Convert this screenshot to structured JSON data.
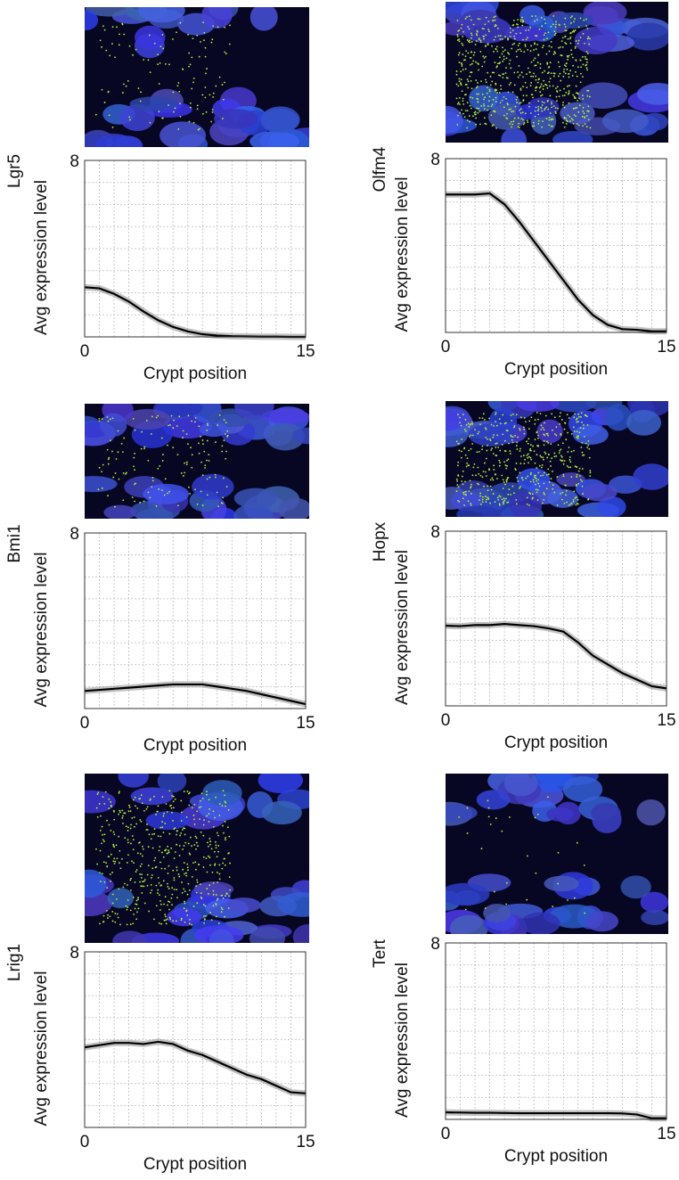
{
  "chart_data": [
    {
      "type": "line",
      "title": "Lgr5",
      "y_label": "Avg expression level",
      "x_label": "Crypt position",
      "x": [
        0,
        1,
        2,
        3,
        4,
        5,
        6,
        7,
        8,
        9,
        10,
        11,
        12,
        13,
        14,
        15
      ],
      "series": [
        {
          "color": "#000000",
          "values": [
            2.25,
            2.2,
            1.95,
            1.6,
            1.15,
            0.75,
            0.45,
            0.25,
            0.12,
            0.06,
            0.03,
            0.02,
            0.01,
            0.01,
            0,
            0
          ]
        }
      ],
      "xlim": [
        0,
        15
      ],
      "ylim": [
        0,
        8
      ],
      "xticks": [
        0,
        15
      ],
      "yticks": [
        8
      ],
      "grid": true
    },
    {
      "type": "line",
      "title": "Olfm4",
      "y_label": "Avg expression level",
      "x_label": "Crypt position",
      "x": [
        0,
        1,
        2,
        3,
        4,
        5,
        6,
        7,
        8,
        9,
        10,
        11,
        12,
        13,
        14,
        15
      ],
      "series": [
        {
          "color": "#000000",
          "values": [
            6.35,
            6.35,
            6.35,
            6.4,
            5.9,
            5.1,
            4.2,
            3.3,
            2.4,
            1.5,
            0.8,
            0.35,
            0.15,
            0.12,
            0.05,
            0.05
          ]
        }
      ],
      "xlim": [
        0,
        15
      ],
      "ylim": [
        0,
        8
      ],
      "xticks": [
        0,
        15
      ],
      "yticks": [
        8
      ],
      "grid": true
    },
    {
      "type": "line",
      "title": "Bmi1",
      "y_label": "Avg expression level",
      "x_label": "Crypt position",
      "x": [
        0,
        1,
        2,
        3,
        4,
        5,
        6,
        7,
        8,
        9,
        10,
        11,
        12,
        13,
        14,
        15
      ],
      "series": [
        {
          "color": "#000000",
          "values": [
            0.8,
            0.85,
            0.9,
            0.95,
            1.0,
            1.05,
            1.1,
            1.1,
            1.1,
            1.0,
            0.9,
            0.8,
            0.65,
            0.5,
            0.35,
            0.2
          ]
        }
      ],
      "xlim": [
        0,
        15
      ],
      "ylim": [
        0,
        8
      ],
      "xticks": [
        0,
        15
      ],
      "yticks": [
        8
      ],
      "grid": true
    },
    {
      "type": "line",
      "title": "Hopx",
      "y_label": "Avg expression level",
      "x_label": "Crypt position",
      "x": [
        0,
        1,
        2,
        3,
        4,
        5,
        6,
        7,
        8,
        9,
        10,
        11,
        12,
        13,
        14,
        15
      ],
      "series": [
        {
          "color": "#000000",
          "values": [
            3.67,
            3.65,
            3.7,
            3.7,
            3.75,
            3.7,
            3.65,
            3.55,
            3.4,
            2.9,
            2.3,
            1.9,
            1.5,
            1.2,
            0.9,
            0.8
          ]
        }
      ],
      "xlim": [
        0,
        15
      ],
      "ylim": [
        0,
        8
      ],
      "xticks": [
        0,
        15
      ],
      "yticks": [
        8
      ],
      "grid": true
    },
    {
      "type": "line",
      "title": "Lrig1",
      "y_label": "Avg expression level",
      "x_label": "Crypt position",
      "x": [
        0,
        1,
        2,
        3,
        4,
        5,
        6,
        7,
        8,
        9,
        10,
        11,
        12,
        13,
        14,
        15
      ],
      "series": [
        {
          "color": "#000000",
          "values": [
            3.65,
            3.75,
            3.85,
            3.85,
            3.8,
            3.9,
            3.8,
            3.5,
            3.3,
            3.0,
            2.7,
            2.4,
            2.2,
            1.9,
            1.6,
            1.55
          ]
        }
      ],
      "xlim": [
        0,
        15
      ],
      "ylim": [
        0,
        8
      ],
      "xticks": [
        0,
        15
      ],
      "yticks": [
        8
      ],
      "grid": true
    },
    {
      "type": "line",
      "title": "Tert",
      "y_label": "Avg expression level",
      "x_label": "Crypt position",
      "x": [
        0,
        1,
        2,
        3,
        4,
        5,
        6,
        7,
        8,
        9,
        10,
        11,
        12,
        13,
        14,
        15
      ],
      "series": [
        {
          "color": "#000000",
          "values": [
            0.32,
            0.31,
            0.3,
            0.3,
            0.29,
            0.28,
            0.28,
            0.28,
            0.28,
            0.28,
            0.28,
            0.28,
            0.27,
            0.22,
            0.05,
            0.05
          ]
        }
      ],
      "xlim": [
        0,
        15
      ],
      "ylim": [
        0,
        8
      ],
      "xticks": [
        0,
        15
      ],
      "yticks": [
        8
      ],
      "grid": true
    }
  ]
}
